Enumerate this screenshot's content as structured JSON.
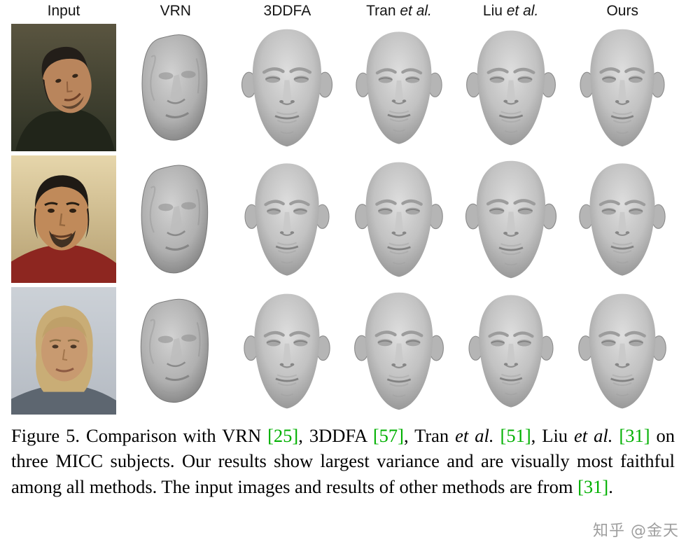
{
  "figure": {
    "columns": [
      {
        "id": "input",
        "text": "Input",
        "italic": ""
      },
      {
        "id": "vrn",
        "text": "VRN",
        "italic": ""
      },
      {
        "id": "3ddfa",
        "text": "3DDFA",
        "italic": ""
      },
      {
        "id": "tran",
        "text": "Tran ",
        "italic": "et al."
      },
      {
        "id": "liu",
        "text": "Liu ",
        "italic": "et al."
      },
      {
        "id": "ours",
        "text": "Ours",
        "italic": ""
      }
    ],
    "rows": [
      "micc-subject-1",
      "micc-subject-2",
      "micc-subject-3"
    ],
    "grid": [
      [
        "photo1",
        "vrn",
        "face",
        "face",
        "face",
        "face"
      ],
      [
        "photo2",
        "vrn",
        "face",
        "face",
        "face",
        "face"
      ],
      [
        "photo3",
        "vrn",
        "face",
        "face",
        "face",
        "face"
      ]
    ],
    "cell_kinds": {
      "photo1": "input-photo-subject-1",
      "photo2": "input-photo-subject-2",
      "photo3": "input-photo-subject-3",
      "vrn": "vrn-3d-reconstruction",
      "face": "3d-face-reconstruction"
    }
  },
  "caption": {
    "label": "Figure 5.",
    "segments": [
      {
        "t": "Figure 5.  Comparison with VRN "
      },
      {
        "t": "[25]",
        "cite": true
      },
      {
        "t": ", 3DDFA "
      },
      {
        "t": "[57]",
        "cite": true
      },
      {
        "t": ", Tran "
      },
      {
        "t": "et al.",
        "italic": true
      },
      {
        "t": " "
      },
      {
        "t": "[51]",
        "cite": true
      },
      {
        "t": ", Liu "
      },
      {
        "t": "et al.",
        "italic": true
      },
      {
        "t": " "
      },
      {
        "t": "[31]",
        "cite": true
      },
      {
        "t": " on three MICC subjects.  Our results show largest variance and are visually most faithful among all methods.  The input images and results of other methods are from "
      },
      {
        "t": "[31]",
        "cite": true
      },
      {
        "t": "."
      }
    ]
  },
  "watermark": {
    "text": "知乎 @金天"
  },
  "colors": {
    "citation_green": "#00b000",
    "watermark_gray": "#9e9e9e",
    "render_gray_light": "#dcdcdc",
    "render_gray_dark": "#8f8f8f"
  }
}
